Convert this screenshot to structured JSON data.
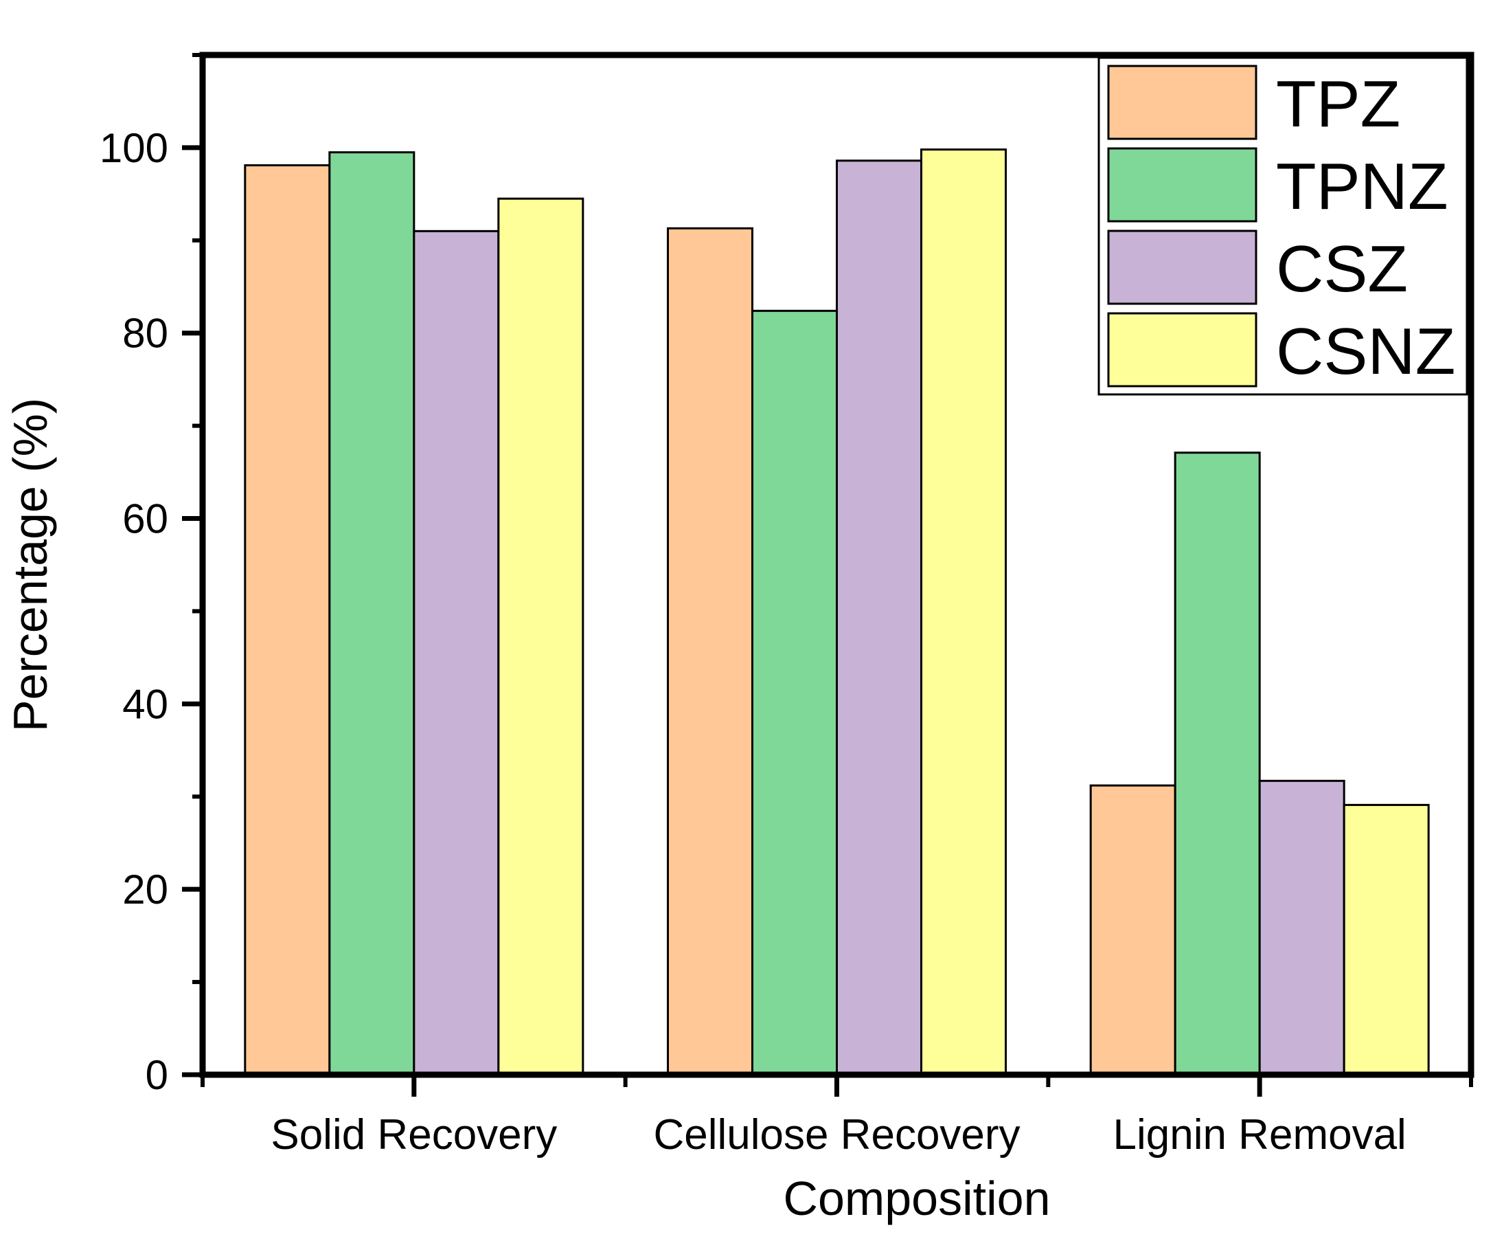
{
  "chart_data": {
    "type": "bar",
    "title": "",
    "xlabel": "Composition",
    "ylabel": "Percentage (%)",
    "categories": [
      "Solid Recovery",
      "Cellulose Recovery",
      "Lignin Removal"
    ],
    "series": [
      {
        "name": "TPZ",
        "color": "#FFC896",
        "values": [
          98.1,
          91.3,
          31.2
        ]
      },
      {
        "name": "TPNZ",
        "color": "#80D898",
        "values": [
          99.5,
          82.4,
          67.1
        ]
      },
      {
        "name": "CSZ",
        "color": "#C8B2D6",
        "values": [
          91.0,
          98.6,
          31.7
        ]
      },
      {
        "name": "CSNZ",
        "color": "#FFFF99",
        "values": [
          94.5,
          99.8,
          29.1
        ]
      }
    ],
    "ylim": [
      0,
      110
    ],
    "yticks": [
      0,
      20,
      40,
      60,
      80,
      100
    ],
    "y_minor_step": 10,
    "legend_position": "top-right",
    "grid": false
  }
}
